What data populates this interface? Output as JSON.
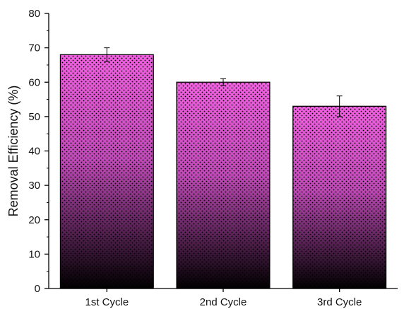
{
  "chart_data": {
    "type": "bar",
    "title": "",
    "xlabel": "",
    "ylabel": "Removal Efficiency (%)",
    "categories": [
      "1st Cycle",
      "2nd Cycle",
      "3rd Cycle"
    ],
    "series": [
      {
        "values": [
          68,
          60,
          53
        ],
        "errors": [
          2,
          1,
          3
        ]
      }
    ],
    "ylim": [
      0,
      80
    ],
    "yticks": [
      0,
      10,
      20,
      30,
      40,
      50,
      60,
      70,
      80
    ],
    "grid": false,
    "legend": "none",
    "bar_fill_top": "#f060e0",
    "bar_fill_bottom": "#000000",
    "bar_pattern": "dots",
    "bar_edge_color": "#000000"
  }
}
